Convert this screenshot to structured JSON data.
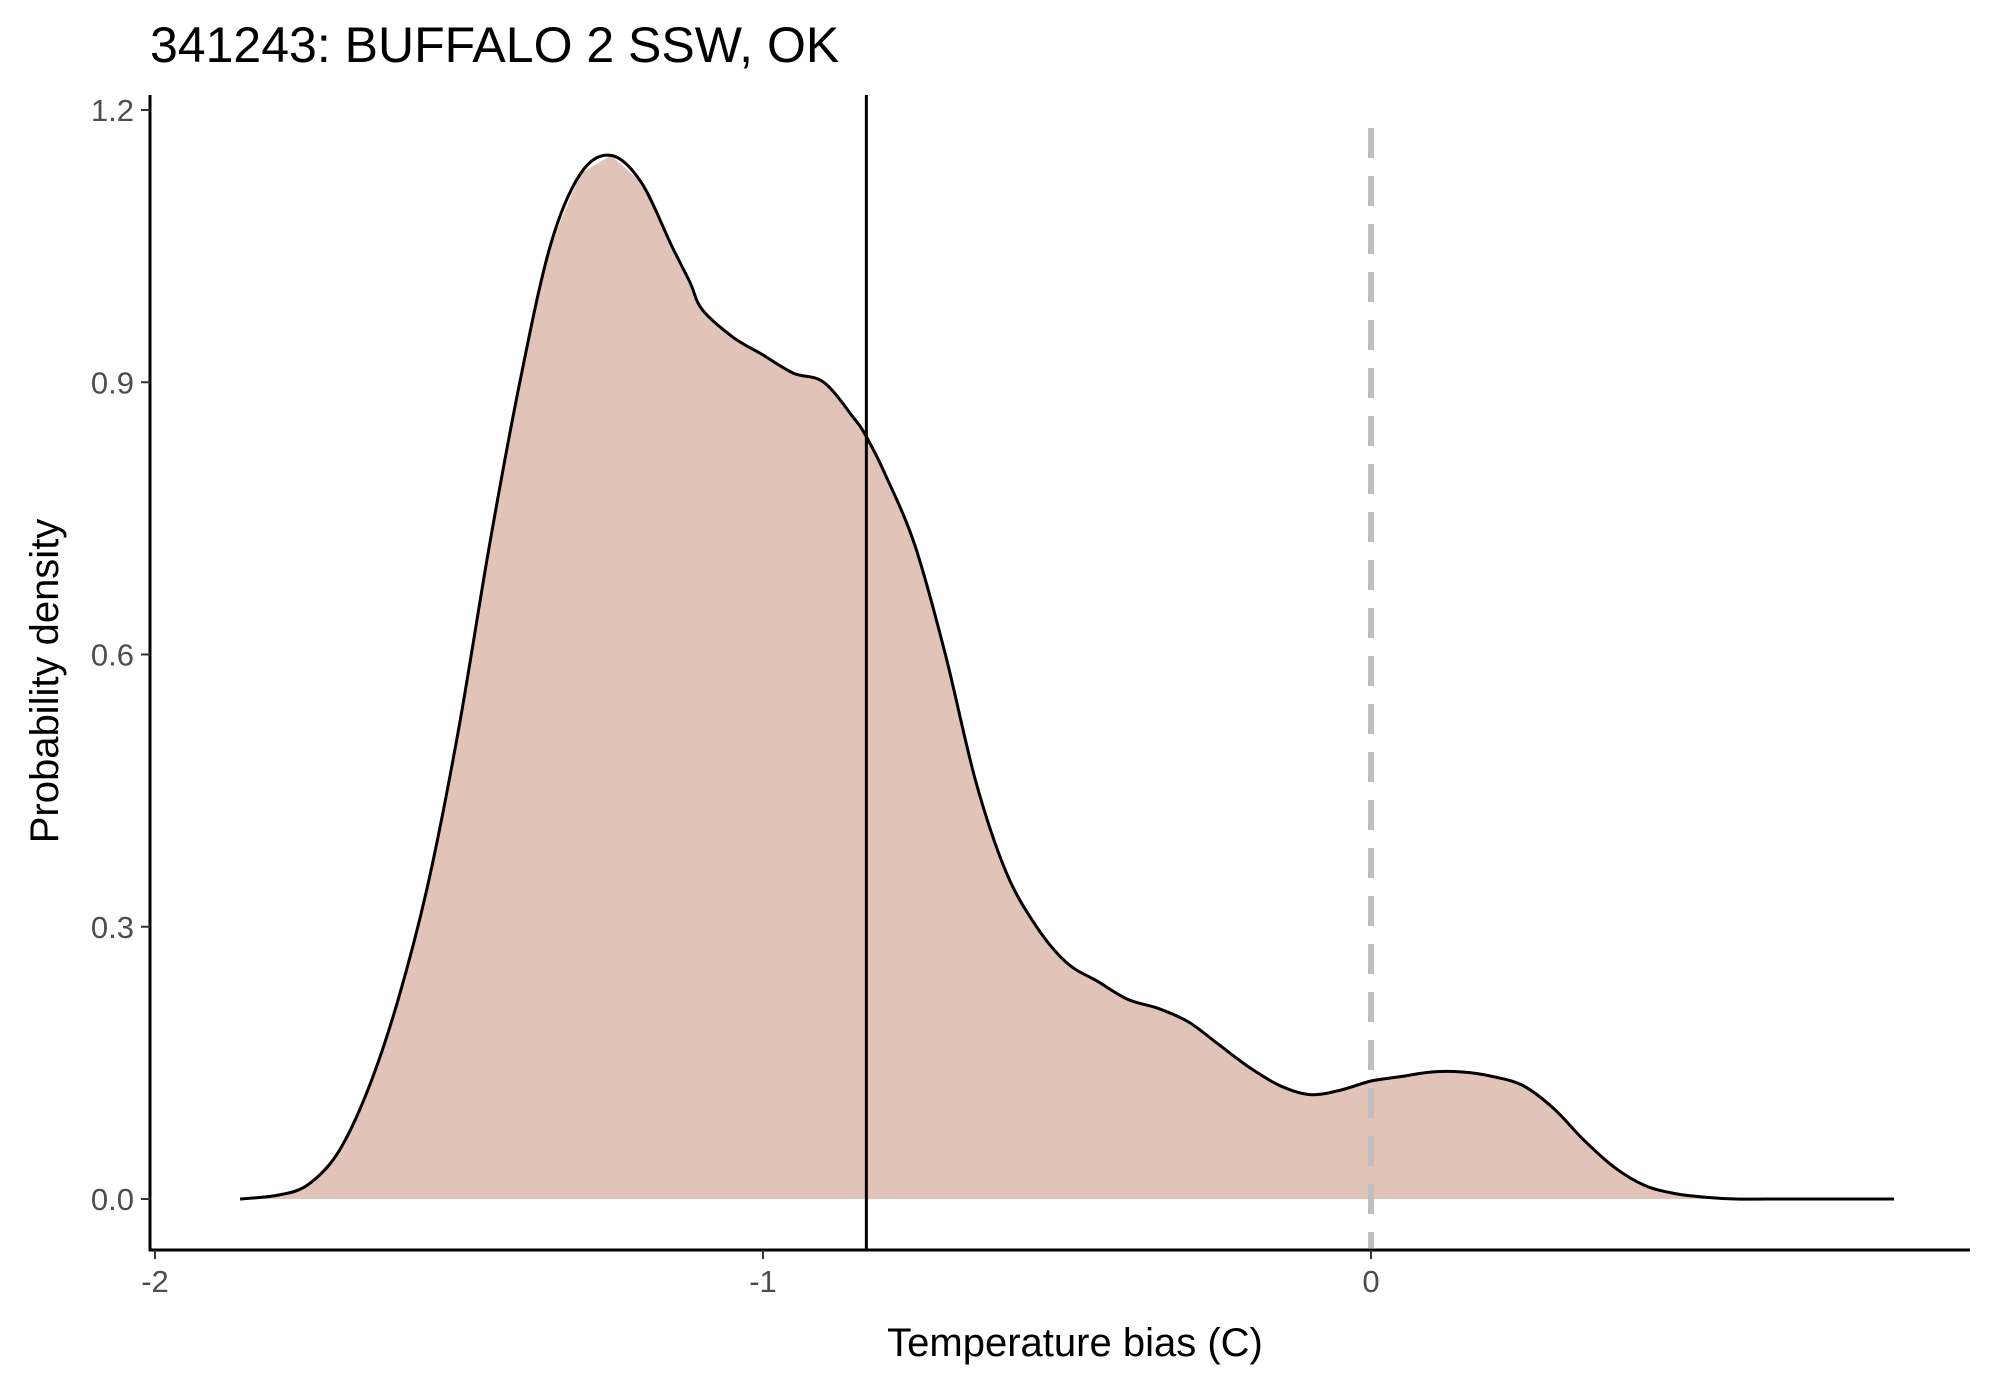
{
  "chart_data": {
    "type": "area",
    "title": "341243: BUFFALO 2 SSW, OK",
    "xlabel": "Temperature bias (C)",
    "ylabel": "Probability density",
    "xlim": [
      -2.0,
      1.0
    ],
    "ylim": [
      -0.06,
      1.23
    ],
    "x_ticks": [
      -2,
      -1,
      0
    ],
    "x_tick_labels": [
      "-2",
      "-1",
      "0"
    ],
    "y_ticks": [
      0.0,
      0.3,
      0.6,
      0.9,
      1.2
    ],
    "y_tick_labels": [
      "0.0",
      "0.3",
      "0.6",
      "0.9",
      "1.2"
    ],
    "grid": false,
    "series": [
      {
        "x": [
          -1.86,
          -1.8,
          -1.75,
          -1.7,
          -1.65,
          -1.6,
          -1.55,
          -1.5,
          -1.45,
          -1.4,
          -1.35,
          -1.3,
          -1.25,
          -1.2,
          -1.15,
          -1.12,
          -1.1,
          -1.05,
          -1.0,
          -0.95,
          -0.9,
          -0.85,
          -0.83,
          -0.8,
          -0.75,
          -0.7,
          -0.65,
          -0.6,
          -0.55,
          -0.5,
          -0.45,
          -0.4,
          -0.35,
          -0.3,
          -0.25,
          -0.2,
          -0.15,
          -0.1,
          -0.05,
          0.0,
          0.05,
          0.1,
          0.15,
          0.2,
          0.25,
          0.3,
          0.35,
          0.4,
          0.45,
          0.5,
          0.55,
          0.6,
          0.65,
          0.7,
          0.75,
          0.8,
          0.86
        ],
        "values": [
          0.0,
          0.004,
          0.015,
          0.05,
          0.12,
          0.22,
          0.35,
          0.52,
          0.72,
          0.9,
          1.05,
          1.13,
          1.15,
          1.12,
          1.05,
          1.01,
          0.98,
          0.95,
          0.93,
          0.91,
          0.9,
          0.86,
          0.84,
          0.8,
          0.72,
          0.6,
          0.46,
          0.36,
          0.3,
          0.26,
          0.24,
          0.22,
          0.21,
          0.195,
          0.17,
          0.145,
          0.125,
          0.115,
          0.12,
          0.13,
          0.135,
          0.14,
          0.14,
          0.135,
          0.125,
          0.1,
          0.065,
          0.035,
          0.015,
          0.006,
          0.002,
          0.0,
          0.0,
          0.0,
          0.0,
          0.0,
          0.0
        ],
        "fill_color": "#e2c3b8",
        "line_color": "#000000"
      }
    ],
    "reference_lines": [
      {
        "x": -0.83,
        "style": "solid",
        "color": "#000000"
      },
      {
        "x": 0.0,
        "style": "dashed",
        "color": "#bfbfbf"
      }
    ]
  }
}
